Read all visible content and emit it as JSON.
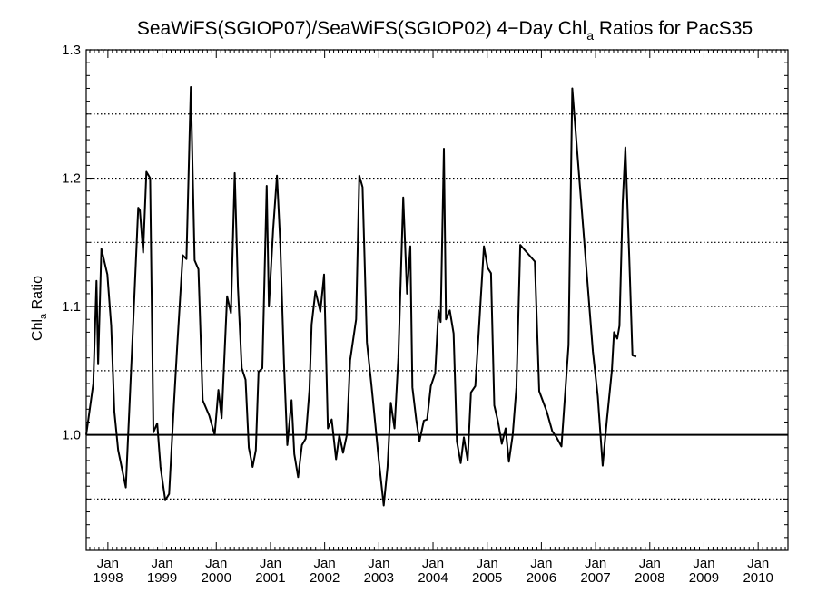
{
  "chart_data": {
    "type": "line",
    "title": "SeaWiFS(SGIOP07)/SeaWiFS(SGIOP02) 4−Day Chl",
    "title_subscript": "a",
    "title_suffix": " Ratios for PacS35",
    "ylabel": "Chl",
    "ylabel_subscript": "a",
    "ylabel_suffix": " Ratio",
    "xlabel": "",
    "xlim": [
      1997.6,
      2010.55
    ],
    "ylim": [
      0.91,
      1.3
    ],
    "x_month_label": "Jan",
    "x_tick_years": [
      "1998",
      "1999",
      "2000",
      "2001",
      "2002",
      "2003",
      "2004",
      "2005",
      "2006",
      "2007",
      "2008",
      "2009",
      "2010"
    ],
    "y_tick_labels": [
      "1.0",
      "1.1",
      "1.2",
      "1.3"
    ],
    "y_tick_values": [
      1.0,
      1.1,
      1.2,
      1.3
    ],
    "gridlines_dotted": [
      0.95,
      1.05,
      1.1,
      1.15,
      1.2,
      1.25,
      1.3
    ],
    "reference_line": 1.0,
    "grid": true,
    "colors": {
      "line": "#000000",
      "axis": "#000000",
      "background": "#ffffff"
    },
    "series": [
      {
        "values": [
          [
            1997.6,
            1.0
          ],
          [
            1997.73,
            1.04
          ],
          [
            1997.79,
            1.12
          ],
          [
            1997.82,
            1.055
          ],
          [
            1997.88,
            1.145
          ],
          [
            1997.99,
            1.125
          ],
          [
            1998.06,
            1.085
          ],
          [
            1998.12,
            1.018
          ],
          [
            1998.19,
            0.988
          ],
          [
            1998.33,
            0.959
          ],
          [
            1998.46,
            1.08
          ],
          [
            1998.56,
            1.177
          ],
          [
            1998.59,
            1.175
          ],
          [
            1998.65,
            1.142
          ],
          [
            1998.71,
            1.205
          ],
          [
            1998.78,
            1.2
          ],
          [
            1998.84,
            1.002
          ],
          [
            1998.91,
            1.009
          ],
          [
            1998.97,
            0.975
          ],
          [
            1999.06,
            0.949
          ],
          [
            1999.13,
            0.954
          ],
          [
            1999.22,
            1.025
          ],
          [
            1999.28,
            1.07
          ],
          [
            1999.38,
            1.14
          ],
          [
            1999.45,
            1.137
          ],
          [
            1999.53,
            1.271
          ],
          [
            1999.6,
            1.136
          ],
          [
            1999.67,
            1.129
          ],
          [
            1999.75,
            1.027
          ],
          [
            1999.87,
            1.015
          ],
          [
            1999.97,
            1.0
          ],
          [
            2000.04,
            1.035
          ],
          [
            2000.1,
            1.013
          ],
          [
            2000.2,
            1.108
          ],
          [
            2000.27,
            1.095
          ],
          [
            2000.34,
            1.204
          ],
          [
            2000.4,
            1.115
          ],
          [
            2000.47,
            1.052
          ],
          [
            2000.54,
            1.043
          ],
          [
            2000.6,
            0.99
          ],
          [
            2000.67,
            0.975
          ],
          [
            2000.73,
            0.988
          ],
          [
            2000.78,
            1.049
          ],
          [
            2000.85,
            1.052
          ],
          [
            2000.93,
            1.194
          ],
          [
            2000.97,
            1.1
          ],
          [
            2001.05,
            1.16
          ],
          [
            2001.12,
            1.202
          ],
          [
            2001.18,
            1.15
          ],
          [
            2001.25,
            1.055
          ],
          [
            2001.31,
            0.992
          ],
          [
            2001.39,
            1.027
          ],
          [
            2001.44,
            0.985
          ],
          [
            2001.51,
            0.967
          ],
          [
            2001.58,
            0.992
          ],
          [
            2001.65,
            0.997
          ],
          [
            2001.72,
            1.035
          ],
          [
            2001.76,
            1.086
          ],
          [
            2001.83,
            1.112
          ],
          [
            2001.92,
            1.096
          ],
          [
            2001.99,
            1.125
          ],
          [
            2002.06,
            1.005
          ],
          [
            2002.13,
            1.012
          ],
          [
            2002.21,
            0.981
          ],
          [
            2002.27,
            1.0
          ],
          [
            2002.34,
            0.986
          ],
          [
            2002.41,
            1.0
          ],
          [
            2002.47,
            1.058
          ],
          [
            2002.58,
            1.09
          ],
          [
            2002.64,
            1.202
          ],
          [
            2002.7,
            1.193
          ],
          [
            2002.78,
            1.072
          ],
          [
            2002.86,
            1.04
          ],
          [
            2002.93,
            1.01
          ],
          [
            2003.0,
            0.98
          ],
          [
            2003.09,
            0.945
          ],
          [
            2003.16,
            0.975
          ],
          [
            2003.22,
            1.025
          ],
          [
            2003.29,
            1.005
          ],
          [
            2003.36,
            1.06
          ],
          [
            2003.45,
            1.185
          ],
          [
            2003.52,
            1.11
          ],
          [
            2003.58,
            1.147
          ],
          [
            2003.62,
            1.037
          ],
          [
            2003.69,
            1.012
          ],
          [
            2003.75,
            0.995
          ],
          [
            2003.83,
            1.011
          ],
          [
            2003.89,
            1.012
          ],
          [
            2003.96,
            1.038
          ],
          [
            2004.04,
            1.048
          ],
          [
            2004.1,
            1.097
          ],
          [
            2004.14,
            1.088
          ],
          [
            2004.2,
            1.223
          ],
          [
            2004.24,
            1.09
          ],
          [
            2004.31,
            1.097
          ],
          [
            2004.38,
            1.079
          ],
          [
            2004.44,
            0.995
          ],
          [
            2004.51,
            0.978
          ],
          [
            2004.57,
            0.998
          ],
          [
            2004.64,
            0.98
          ],
          [
            2004.7,
            1.033
          ],
          [
            2004.78,
            1.038
          ],
          [
            2004.85,
            1.085
          ],
          [
            2004.94,
            1.147
          ],
          [
            2005.01,
            1.13
          ],
          [
            2005.07,
            1.126
          ],
          [
            2005.13,
            1.023
          ],
          [
            2005.2,
            1.01
          ],
          [
            2005.27,
            0.993
          ],
          [
            2005.34,
            1.005
          ],
          [
            2005.4,
            0.979
          ],
          [
            2005.47,
            1.0
          ],
          [
            2005.54,
            1.037
          ],
          [
            2005.61,
            1.148
          ],
          [
            2005.88,
            1.135
          ],
          [
            2005.96,
            1.034
          ],
          [
            2006.1,
            1.018
          ],
          [
            2006.2,
            1.003
          ],
          [
            2006.28,
            0.998
          ],
          [
            2006.37,
            0.991
          ],
          [
            2006.5,
            1.07
          ],
          [
            2006.57,
            1.27
          ],
          [
            2006.95,
            1.065
          ],
          [
            2007.04,
            1.03
          ],
          [
            2007.13,
            0.976
          ],
          [
            2007.21,
            1.012
          ],
          [
            2007.3,
            1.05
          ],
          [
            2007.34,
            1.08
          ],
          [
            2007.4,
            1.075
          ],
          [
            2007.44,
            1.085
          ],
          [
            2007.5,
            1.18
          ],
          [
            2007.55,
            1.224
          ],
          [
            2007.62,
            1.14
          ],
          [
            2007.68,
            1.062
          ],
          [
            2007.75,
            1.061
          ]
        ]
      }
    ]
  }
}
